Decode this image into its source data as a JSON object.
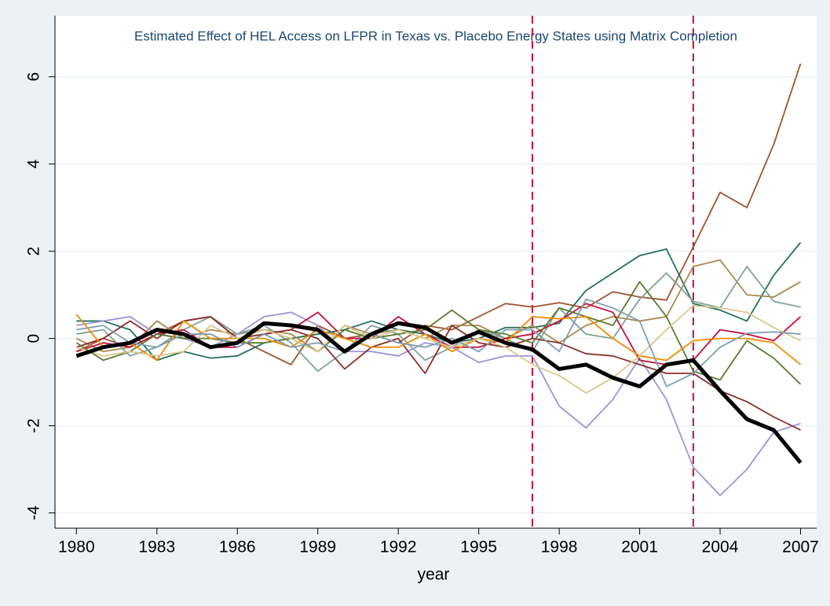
{
  "chart_data": {
    "type": "line",
    "title": "Estimated Effect of HEL Access on LFPR in Texas vs. Placebo Energy States using Matrix Completion",
    "x_label": "year",
    "x": [
      1980,
      1981,
      1982,
      1983,
      1984,
      1985,
      1986,
      1987,
      1988,
      1989,
      1990,
      1991,
      1992,
      1993,
      1994,
      1995,
      1996,
      1997,
      1998,
      1999,
      2000,
      2001,
      2002,
      2003,
      2004,
      2005,
      2006,
      2007
    ],
    "xlim": [
      1979.2,
      2007.6
    ],
    "xticks": [
      1980,
      1983,
      1986,
      1989,
      1992,
      1995,
      1998,
      2001,
      2004,
      2007
    ],
    "ylim": [
      -4.35,
      7.4
    ],
    "yticks": [
      -4,
      -2,
      0,
      2,
      4,
      6
    ],
    "grid": true,
    "vlines": [
      1997,
      2003
    ],
    "vline_color": "#c8103c",
    "series": [
      {
        "color": "#a0522d",
        "values": [
          -0.3,
          0.0,
          -0.2,
          0.1,
          0.4,
          0.5,
          0.0,
          -0.3,
          -0.6,
          0.3,
          0.0,
          0.1,
          -0.1,
          0.3,
          0.2,
          0.5,
          0.8,
          0.72,
          0.82,
          0.7,
          1.07,
          0.95,
          0.88,
          2.1,
          3.35,
          3.0,
          4.45,
          6.3
        ]
      },
      {
        "color": "#23705f",
        "values": [
          0.4,
          0.4,
          0.2,
          -0.5,
          -0.3,
          -0.45,
          -0.4,
          -0.1,
          0.0,
          0.1,
          0.2,
          0.4,
          0.2,
          0.1,
          -0.1,
          0.0,
          0.25,
          0.25,
          0.35,
          1.1,
          1.5,
          1.9,
          2.05,
          0.8,
          0.65,
          0.4,
          1.45,
          2.2
        ]
      },
      {
        "color": "#a88a4a",
        "values": [
          0.0,
          -0.3,
          -0.2,
          0.4,
          0.0,
          0.2,
          0.1,
          0.2,
          0.1,
          -0.3,
          0.3,
          0.1,
          0.2,
          0.0,
          0.3,
          0.3,
          0.0,
          0.3,
          -0.1,
          0.3,
          0.5,
          0.4,
          0.5,
          1.65,
          1.8,
          1.0,
          0.95,
          1.3
        ]
      },
      {
        "color": "#7fa39a",
        "values": [
          0.1,
          0.2,
          -0.4,
          -0.2,
          0.2,
          0.5,
          0.1,
          0.3,
          -0.1,
          -0.75,
          -0.3,
          0.3,
          0.1,
          -0.5,
          -0.2,
          0.2,
          0.0,
          -0.3,
          0.7,
          0.1,
          0.0,
          0.9,
          1.5,
          0.85,
          0.7,
          1.65,
          0.85,
          0.72
        ]
      },
      {
        "color": "#9c94d8",
        "values": [
          0.3,
          0.4,
          0.5,
          0.1,
          0.0,
          -0.2,
          0.1,
          0.5,
          0.6,
          0.3,
          -0.3,
          -0.3,
          -0.4,
          -0.1,
          -0.2,
          -0.55,
          -0.4,
          -0.4,
          -1.55,
          -2.05,
          -1.4,
          -0.45,
          -1.4,
          -2.95,
          -3.6,
          -3.0,
          -2.15,
          -1.95
        ]
      },
      {
        "color": "#c8103c",
        "values": [
          -0.3,
          -0.1,
          -0.2,
          0.1,
          0.2,
          -0.2,
          -0.2,
          0.1,
          0.2,
          0.6,
          0.0,
          0.0,
          0.5,
          0.1,
          -0.2,
          -0.2,
          0.0,
          0.1,
          0.4,
          0.8,
          0.6,
          -0.5,
          -0.6,
          -0.5,
          0.2,
          0.1,
          -0.05,
          0.5
        ]
      },
      {
        "color": "#8c2d2d",
        "values": [
          -0.2,
          0.0,
          0.4,
          0.0,
          0.4,
          0.5,
          0.0,
          0.1,
          0.2,
          0.0,
          -0.7,
          -0.2,
          0.0,
          -0.8,
          0.3,
          -0.1,
          -0.2,
          0.0,
          -0.1,
          -0.35,
          -0.4,
          -0.6,
          -0.8,
          -0.8,
          -1.2,
          -1.45,
          -1.8,
          -2.1
        ]
      },
      {
        "color": "#5c7a2e",
        "values": [
          -0.1,
          -0.5,
          -0.3,
          0.1,
          0.0,
          0.0,
          -0.1,
          -0.1,
          0.0,
          -0.3,
          0.2,
          0.0,
          0.1,
          0.2,
          0.65,
          0.2,
          0.1,
          -0.1,
          0.7,
          0.5,
          0.3,
          1.3,
          0.5,
          -0.75,
          -0.95,
          -0.05,
          -0.45,
          -1.05
        ]
      },
      {
        "color": "#f28c00",
        "values": [
          0.55,
          -0.2,
          -0.1,
          -0.5,
          0.4,
          0.0,
          0.0,
          0.0,
          -0.2,
          0.2,
          0.0,
          -0.2,
          -0.2,
          0.1,
          -0.3,
          0.0,
          -0.1,
          0.5,
          0.45,
          0.5,
          0.0,
          -0.4,
          -0.5,
          -0.05,
          0.0,
          0.0,
          -0.1,
          -0.6
        ]
      },
      {
        "color": "#d9c98a",
        "values": [
          -0.2,
          -0.4,
          -0.3,
          -0.4,
          -0.3,
          0.3,
          0.0,
          0.2,
          0.0,
          -0.3,
          0.3,
          0.0,
          0.2,
          0.0,
          -0.2,
          0.0,
          -0.2,
          -0.6,
          -0.85,
          -1.25,
          -0.9,
          -0.4,
          0.2,
          0.75,
          0.7,
          0.6,
          0.25,
          -0.05
        ]
      },
      {
        "color": "#7d9db5",
        "values": [
          0.2,
          0.3,
          -0.1,
          -0.2,
          0.1,
          0.1,
          -0.2,
          0.1,
          -0.2,
          -0.1,
          -0.3,
          0.1,
          -0.1,
          -0.2,
          0.0,
          -0.3,
          0.2,
          0.2,
          -0.3,
          0.9,
          0.7,
          0.4,
          -1.1,
          -0.8,
          -0.2,
          0.12,
          0.15,
          0.1
        ]
      },
      {
        "color": "#000000",
        "width": 5,
        "values": [
          -0.4,
          -0.2,
          -0.1,
          0.2,
          0.1,
          -0.2,
          -0.1,
          0.35,
          0.3,
          0.2,
          -0.3,
          0.1,
          0.35,
          0.25,
          -0.1,
          0.15,
          -0.1,
          -0.25,
          -0.7,
          -0.6,
          -0.9,
          -1.1,
          -0.6,
          -0.5,
          -1.2,
          -1.85,
          -2.1,
          -2.85
        ]
      }
    ]
  }
}
